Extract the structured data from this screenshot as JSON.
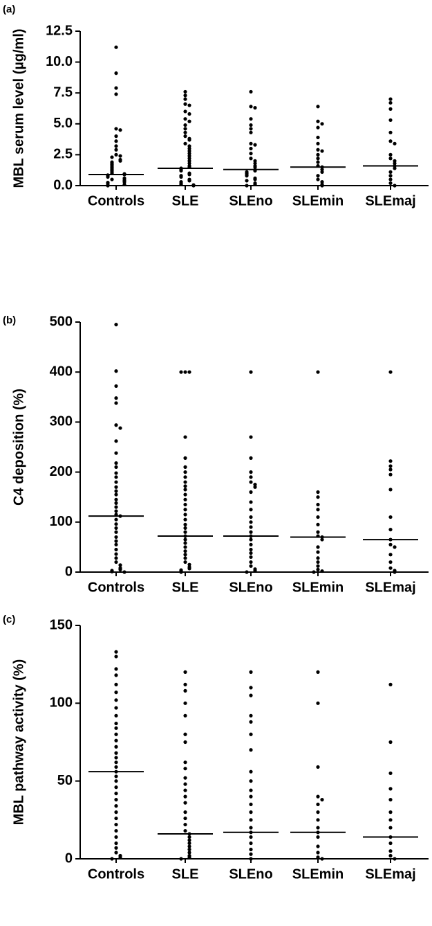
{
  "chart_data": [
    {
      "type": "strip",
      "panel_label": "(a)",
      "ylabel": "MBL serum level (µg/ml)",
      "categories": [
        "Controls",
        "SLE",
        "SLEno",
        "SLEmin",
        "SLEmaj"
      ],
      "groups": [
        [
          11.2,
          9.1,
          7.9,
          7.4,
          4.6,
          4.5,
          4.0,
          3.6,
          3.2,
          2.9,
          2.5,
          2.4,
          2.3,
          2.1,
          2.0,
          1.9,
          1.8,
          1.7,
          1.6,
          1.5,
          1.4,
          1.3,
          1.2,
          1.1,
          1.0,
          0.95,
          0.9,
          0.85,
          0.8,
          0.7,
          0.6,
          0.5,
          0.45,
          0.4,
          0.3,
          0.25,
          0.2,
          0.1,
          0.05,
          0.0
        ],
        [
          7.6,
          7.3,
          7.0,
          6.6,
          6.5,
          6.0,
          5.8,
          5.4,
          5.2,
          4.9,
          4.6,
          4.3,
          4.0,
          3.8,
          3.7,
          3.4,
          3.2,
          3.0,
          2.8,
          2.6,
          2.4,
          2.2,
          2.0,
          1.8,
          1.6,
          1.5,
          1.4,
          1.3,
          1.2,
          1.0,
          0.9,
          0.8,
          0.7,
          0.5,
          0.4,
          0.3,
          0.2,
          0.1,
          0.05,
          0.0
        ],
        [
          7.6,
          6.4,
          6.3,
          5.4,
          4.9,
          4.6,
          4.3,
          3.4,
          3.3,
          3.0,
          2.6,
          2.2,
          2.0,
          1.8,
          1.6,
          1.5,
          1.3,
          1.2,
          1.1,
          1.0,
          0.9,
          0.8,
          0.6,
          0.5,
          0.4,
          0.2,
          0.1,
          0.0
        ],
        [
          6.4,
          5.2,
          5.0,
          4.7,
          3.9,
          3.4,
          2.9,
          2.8,
          2.5,
          2.2,
          1.9,
          1.6,
          1.5,
          1.3,
          1.1,
          0.8,
          0.5,
          0.3,
          0.1,
          0.0
        ],
        [
          7.0,
          6.7,
          6.2,
          5.3,
          4.3,
          3.6,
          3.4,
          2.5,
          2.2,
          2.0,
          1.8,
          1.6,
          1.4,
          1.1,
          0.8,
          0.5,
          0.2,
          0.0
        ]
      ],
      "medians": [
        0.9,
        1.4,
        1.3,
        1.5,
        1.6
      ],
      "ylim": [
        0,
        12.5
      ],
      "yticks": [
        {
          "value": 0,
          "label": "0.0"
        },
        2.5,
        {
          "value": 5,
          "label": "5.0"
        },
        7.5,
        {
          "value": 10,
          "label": "10.0"
        },
        12.5
      ],
      "color": "#000000"
    },
    {
      "type": "strip",
      "panel_label": "(b)",
      "ylabel": "C4 deposition (%)",
      "categories": [
        "Controls",
        "SLE",
        "SLEno",
        "SLEmin",
        "SLEmaj"
      ],
      "groups": [
        [
          495,
          402,
          372,
          348,
          338,
          294,
          288,
          262,
          238,
          218,
          210,
          198,
          190,
          180,
          170,
          162,
          155,
          145,
          138,
          130,
          122,
          115,
          112,
          105,
          96,
          88,
          80,
          70,
          62,
          55,
          45,
          36,
          28,
          20,
          14,
          8,
          5,
          3,
          1,
          0
        ],
        [
          400,
          400,
          400,
          270,
          228,
          210,
          200,
          190,
          180,
          172,
          165,
          155,
          145,
          135,
          125,
          115,
          105,
          95,
          88,
          80,
          72,
          65,
          58,
          50,
          42,
          35,
          28,
          20,
          15,
          10,
          7,
          4,
          2,
          0
        ],
        [
          400,
          270,
          228,
          200,
          190,
          180,
          175,
          170,
          160,
          140,
          125,
          110,
          100,
          90,
          80,
          72,
          65,
          55,
          45,
          38,
          30,
          20,
          12,
          6,
          3,
          0
        ],
        [
          400,
          160,
          150,
          135,
          125,
          110,
          95,
          80,
          72,
          70,
          65,
          50,
          40,
          28,
          20,
          12,
          5,
          2,
          0
        ],
        [
          400,
          222,
          212,
          205,
          195,
          165,
          110,
          85,
          65,
          55,
          50,
          35,
          20,
          8,
          3,
          0
        ]
      ],
      "medians": [
        112,
        72,
        72,
        70,
        65
      ],
      "ylim": [
        0,
        500
      ],
      "yticks": [
        0,
        100,
        200,
        300,
        400,
        500
      ],
      "color": "#000000"
    },
    {
      "type": "strip",
      "panel_label": "(c)",
      "ylabel": "MBL pathway activity (%)",
      "categories": [
        "Controls",
        "SLE",
        "SLEno",
        "SLEmin",
        "SLEmaj"
      ],
      "groups": [
        [
          133,
          130,
          122,
          118,
          112,
          107,
          102,
          97,
          92,
          87,
          84,
          80,
          76,
          72,
          68,
          65,
          62,
          59,
          56,
          53,
          50,
          46,
          42,
          38,
          34,
          30,
          26,
          22,
          18,
          14,
          10,
          7,
          4,
          2,
          1,
          0
        ],
        [
          120,
          112,
          108,
          100,
          92,
          80,
          75,
          62,
          58,
          52,
          48,
          44,
          40,
          36,
          30,
          26,
          22,
          18,
          16,
          14,
          12,
          10,
          8,
          6,
          4,
          2,
          1,
          0
        ],
        [
          120,
          110,
          105,
          92,
          88,
          80,
          70,
          56,
          50,
          44,
          40,
          35,
          30,
          25,
          20,
          17,
          14,
          10,
          6,
          3,
          0
        ],
        [
          120,
          100,
          59,
          40,
          38,
          35,
          30,
          25,
          20,
          17,
          14,
          8,
          4,
          1,
          0
        ],
        [
          112,
          75,
          55,
          45,
          38,
          30,
          25,
          20,
          14,
          10,
          5,
          2,
          0
        ]
      ],
      "medians": [
        56,
        16,
        17,
        17,
        14
      ],
      "ylim": [
        0,
        150
      ],
      "yticks": [
        0,
        50,
        100,
        150
      ],
      "color": "#000000"
    }
  ]
}
